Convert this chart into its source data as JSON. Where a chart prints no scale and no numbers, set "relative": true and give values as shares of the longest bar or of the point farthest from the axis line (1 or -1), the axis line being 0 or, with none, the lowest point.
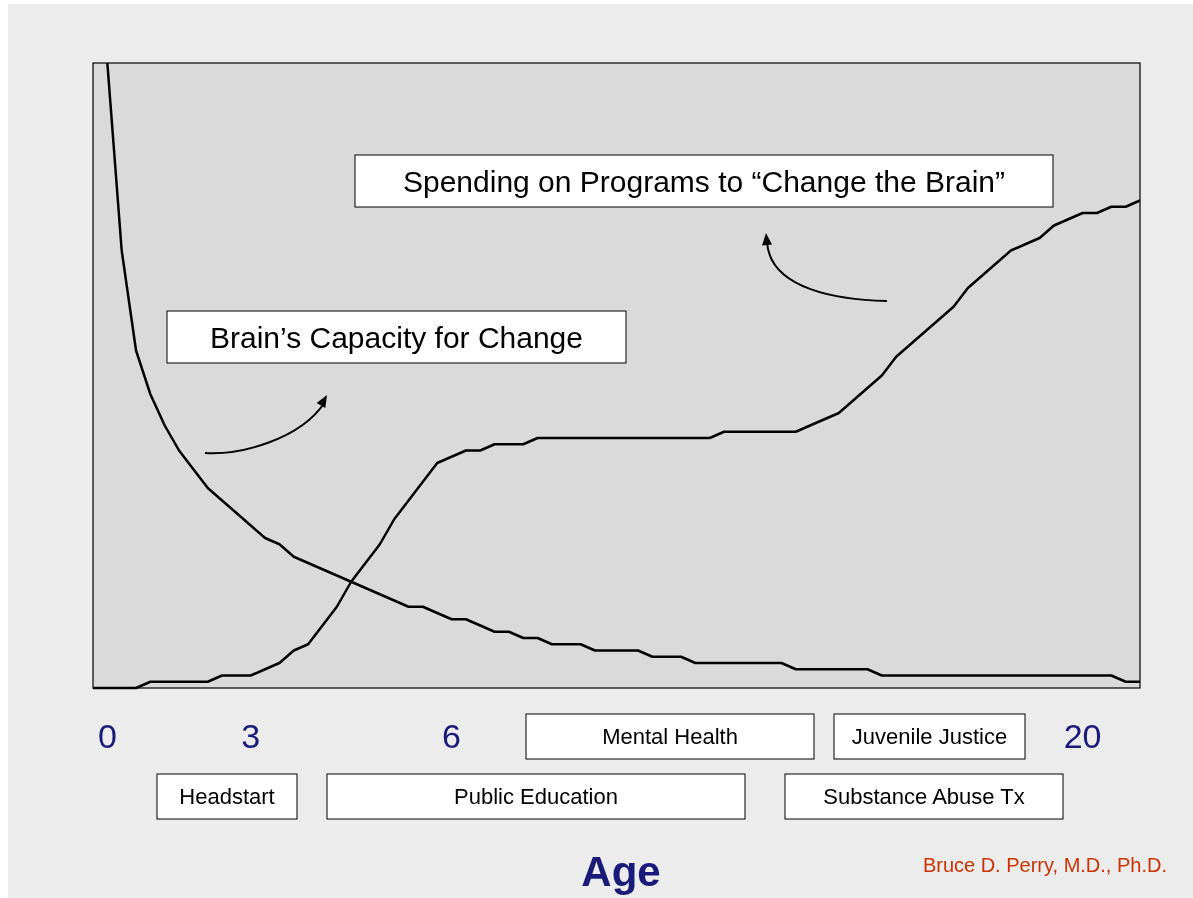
{
  "chart_data": {
    "type": "line",
    "relative": true,
    "xlabel": "Age",
    "marker": "none",
    "line_style": "solid",
    "categories": [
      null,
      "0",
      null,
      null,
      null,
      null,
      null,
      null,
      null,
      null,
      null,
      "3",
      null,
      null,
      null,
      null,
      null,
      null,
      null,
      null,
      null,
      null,
      null,
      null,
      null,
      "6",
      null,
      null,
      null,
      null,
      null,
      null,
      null,
      null,
      null,
      null,
      null,
      null,
      null,
      null,
      null,
      null,
      null,
      null,
      null,
      null,
      null,
      null,
      null,
      null,
      null,
      null,
      null,
      null,
      null,
      null,
      null,
      null,
      null,
      null,
      null,
      null,
      null,
      null,
      null,
      null,
      null,
      null,
      null,
      "20",
      null,
      null,
      null,
      null
    ],
    "series": [
      {
        "color": "#000000",
        "values": [
          null,
          1.0,
          0.7,
          0.54,
          0.47,
          0.42,
          0.38,
          0.35,
          0.32,
          0.3,
          0.28,
          0.26,
          0.24,
          0.23,
          0.21,
          0.2,
          0.19,
          0.18,
          0.17,
          0.16,
          0.15,
          0.14,
          0.13,
          0.13,
          0.12,
          0.11,
          0.11,
          0.1,
          0.09,
          0.09,
          0.08,
          0.08,
          0.07,
          0.07,
          0.07,
          0.06,
          0.06,
          0.06,
          0.06,
          0.05,
          0.05,
          0.05,
          0.04,
          0.04,
          0.04,
          0.04,
          0.04,
          0.04,
          0.04,
          0.03,
          0.03,
          0.03,
          0.03,
          0.03,
          0.03,
          0.02,
          0.02,
          0.02,
          0.02,
          0.02,
          0.02,
          0.02,
          0.02,
          0.02,
          0.02,
          0.02,
          0.02,
          0.02,
          0.02,
          0.02,
          0.02,
          0.02,
          0.01,
          0.01
        ]
      },
      {
        "color": "#000000",
        "values": [
          0,
          0.0,
          0.0,
          0.0,
          0.01,
          0.01,
          0.01,
          0.01,
          0.01,
          0.02,
          0.02,
          0.02,
          0.03,
          0.04,
          0.06,
          0.07,
          0.1,
          0.13,
          0.17,
          0.2,
          0.23,
          0.27,
          0.3,
          0.33,
          0.36,
          0.37,
          0.38,
          0.38,
          0.39,
          0.39,
          0.39,
          0.4,
          0.4,
          0.4,
          0.4,
          0.4,
          0.4,
          0.4,
          0.4,
          0.4,
          0.4,
          0.4,
          0.4,
          0.4,
          0.41,
          0.41,
          0.41,
          0.41,
          0.41,
          0.41,
          0.42,
          0.43,
          0.44,
          0.46,
          0.48,
          0.5,
          0.53,
          0.55,
          0.57,
          0.59,
          0.61,
          0.64,
          0.66,
          0.68,
          0.7,
          0.71,
          0.72,
          0.74,
          0.75,
          0.76,
          0.76,
          0.77,
          0.77,
          0.78
        ]
      }
    ],
    "annotations": [
      "Brain’s Capacity for Change",
      "Spending on Programs to “Change the Brain”",
      "Headstart",
      "Public Education",
      "Mental Health",
      "Juvenile Justice",
      "Substance Abuse Tx",
      "Bruce D. Perry, M.D., Ph.D."
    ]
  }
}
